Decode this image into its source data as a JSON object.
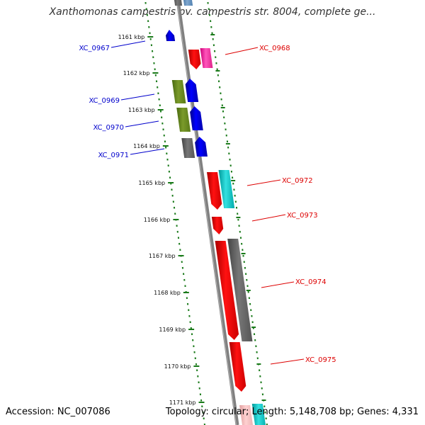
{
  "title": "Xanthomonas campestris pv. campestris str. 8004, complete ge...",
  "footer": {
    "accession": "Accession: NC_007086",
    "stats": "Topology: circular; Length: 5,148,708 bp; Genes: 4,331"
  },
  "colors": {
    "minus_strand_label": "#0000cc",
    "plus_strand_label": "#dd0000",
    "tick": "#1a7a1a",
    "backbone": "#808080"
  },
  "ruler_ticks": [
    "1161 kbp",
    "1162 kbp",
    "1163 kbp",
    "1164 kbp",
    "1165 kbp",
    "1166 kbp",
    "1167 kbp",
    "1168 kbp",
    "1169 kbp",
    "1170 kbp",
    "1171 kbp"
  ],
  "gene_labels": [
    {
      "text": "XC_0967",
      "strand": "minus"
    },
    {
      "text": "XC_0968",
      "strand": "plus"
    },
    {
      "text": "XC_0969",
      "strand": "minus"
    },
    {
      "text": "XC_0970",
      "strand": "minus"
    },
    {
      "text": "XC_0971",
      "strand": "minus"
    },
    {
      "text": "XC_0972",
      "strand": "plus"
    },
    {
      "text": "XC_0973",
      "strand": "plus"
    },
    {
      "text": "XC_0974",
      "strand": "plus"
    },
    {
      "text": "XC_0975",
      "strand": "plus"
    }
  ]
}
